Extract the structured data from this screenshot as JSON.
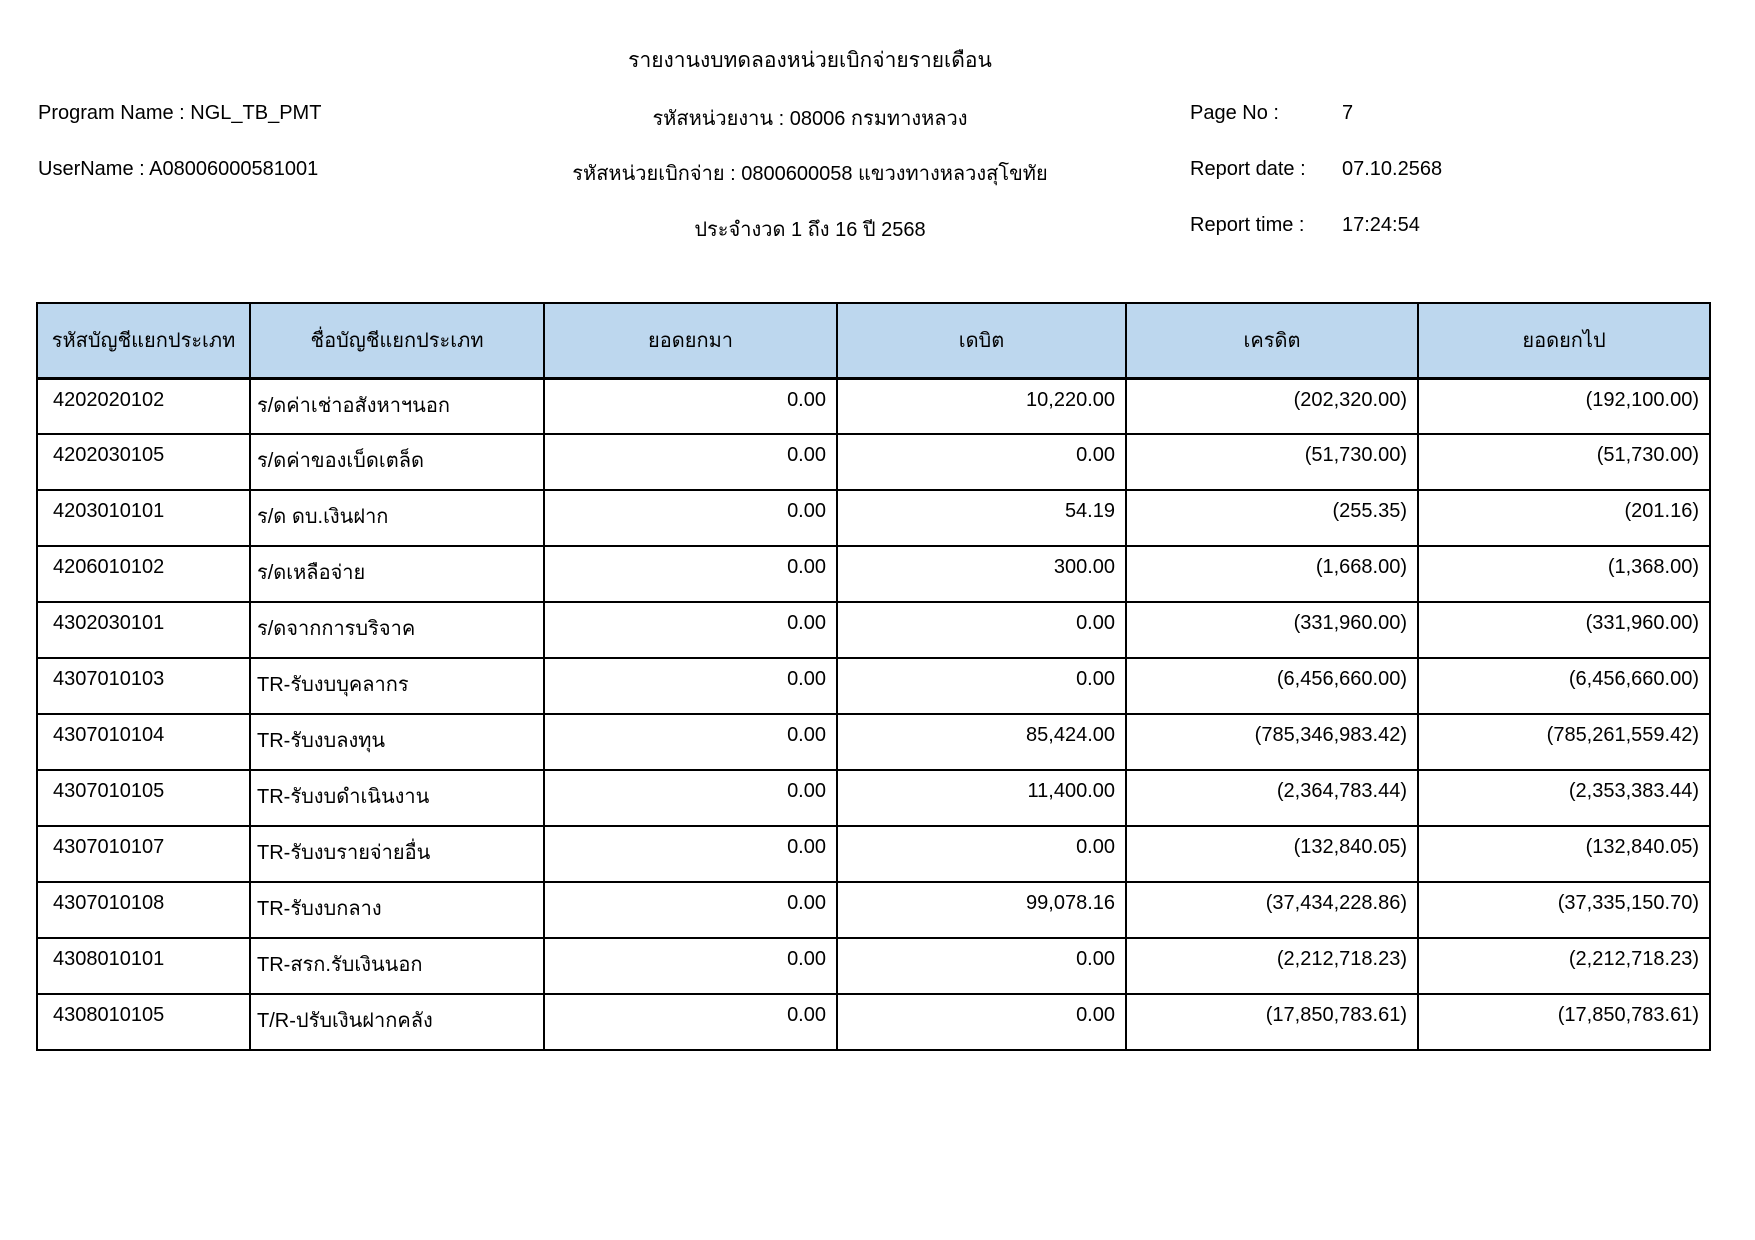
{
  "report_header": {
    "title": "รายงานงบทดลองหน่วยเบิกจ่ายรายเดือน",
    "program_name": "Program Name : NGL_TB_PMT",
    "username": "UserName : A08006000581001",
    "agency_code": "รหัสหน่วยงาน : 08006 กรมทางหลวง",
    "disbursement_unit": "รหัสหน่วยเบิกจ่าย : 0800600058 แขวงทางหลวงสุโขทัย",
    "period": "ประจำงวด 1 ถึง 16 ปี 2568",
    "page_no_label": "Page No :",
    "page_no": "7",
    "report_date_label": "Report date :",
    "report_date": "07.10.2568",
    "report_time_label": "Report time :",
    "report_time": "17:24:54"
  },
  "table": {
    "header_bg": "#BDD7EE",
    "columns": {
      "code": "รหัสบัญชีแยกประเภท",
      "name": "ชื่อบัญชีแยกประเภท",
      "bf": "ยอดยกมา",
      "debit": "เดบิต",
      "credit": "เครดิต",
      "cf": "ยอดยกไป"
    },
    "rows": [
      {
        "code": "4202020102",
        "name": "ร/ดค่าเช่าอสังหาฯนอก",
        "bf": "0.00",
        "debit": "10,220.00",
        "credit": "(202,320.00)",
        "cf": "(192,100.00)"
      },
      {
        "code": "4202030105",
        "name": "ร/ดค่าของเบ็ดเตล็ด",
        "bf": "0.00",
        "debit": "0.00",
        "credit": "(51,730.00)",
        "cf": "(51,730.00)"
      },
      {
        "code": "4203010101",
        "name": "ร/ด ดบ.เงินฝาก",
        "bf": "0.00",
        "debit": "54.19",
        "credit": "(255.35)",
        "cf": "(201.16)"
      },
      {
        "code": "4206010102",
        "name": "ร/ดเหลือจ่าย",
        "bf": "0.00",
        "debit": "300.00",
        "credit": "(1,668.00)",
        "cf": "(1,368.00)"
      },
      {
        "code": "4302030101",
        "name": "ร/ดจากการบริจาค",
        "bf": "0.00",
        "debit": "0.00",
        "credit": "(331,960.00)",
        "cf": "(331,960.00)"
      },
      {
        "code": "4307010103",
        "name": "TR-รับงบบุคลากร",
        "bf": "0.00",
        "debit": "0.00",
        "credit": "(6,456,660.00)",
        "cf": "(6,456,660.00)"
      },
      {
        "code": "4307010104",
        "name": "TR-รับงบลงทุน",
        "bf": "0.00",
        "debit": "85,424.00",
        "credit": "(785,346,983.42)",
        "cf": "(785,261,559.42)"
      },
      {
        "code": "4307010105",
        "name": "TR-รับงบดำเนินงาน",
        "bf": "0.00",
        "debit": "11,400.00",
        "credit": "(2,364,783.44)",
        "cf": "(2,353,383.44)"
      },
      {
        "code": "4307010107",
        "name": "TR-รับงบรายจ่ายอื่น",
        "bf": "0.00",
        "debit": "0.00",
        "credit": "(132,840.05)",
        "cf": "(132,840.05)"
      },
      {
        "code": "4307010108",
        "name": "TR-รับงบกลาง",
        "bf": "0.00",
        "debit": "99,078.16",
        "credit": "(37,434,228.86)",
        "cf": "(37,335,150.70)"
      },
      {
        "code": "4308010101",
        "name": "TR-สรก.รับเงินนอก",
        "bf": "0.00",
        "debit": "0.00",
        "credit": "(2,212,718.23)",
        "cf": "(2,212,718.23)"
      },
      {
        "code": "4308010105",
        "name": "T/R-ปรับเงินฝากคลัง",
        "bf": "0.00",
        "debit": "0.00",
        "credit": "(17,850,783.61)",
        "cf": "(17,850,783.61)"
      }
    ]
  }
}
